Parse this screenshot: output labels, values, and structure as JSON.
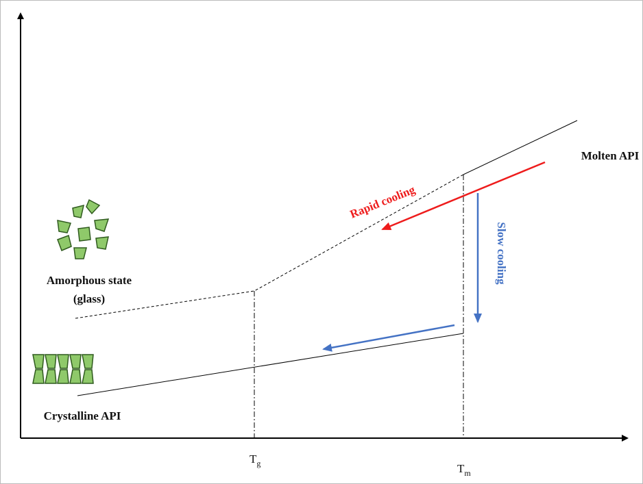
{
  "labels": {
    "molten": "Molten API",
    "rapid": "Rapid cooling",
    "slow": "Slow cooling",
    "amorphous": "Amorphous state",
    "glass": "(glass)",
    "crystalline": "Crystalline API"
  },
  "axis_labels": {
    "tg": {
      "base": "T",
      "sub": "g"
    },
    "tm": {
      "base": "T",
      "sub": "m"
    }
  }
}
